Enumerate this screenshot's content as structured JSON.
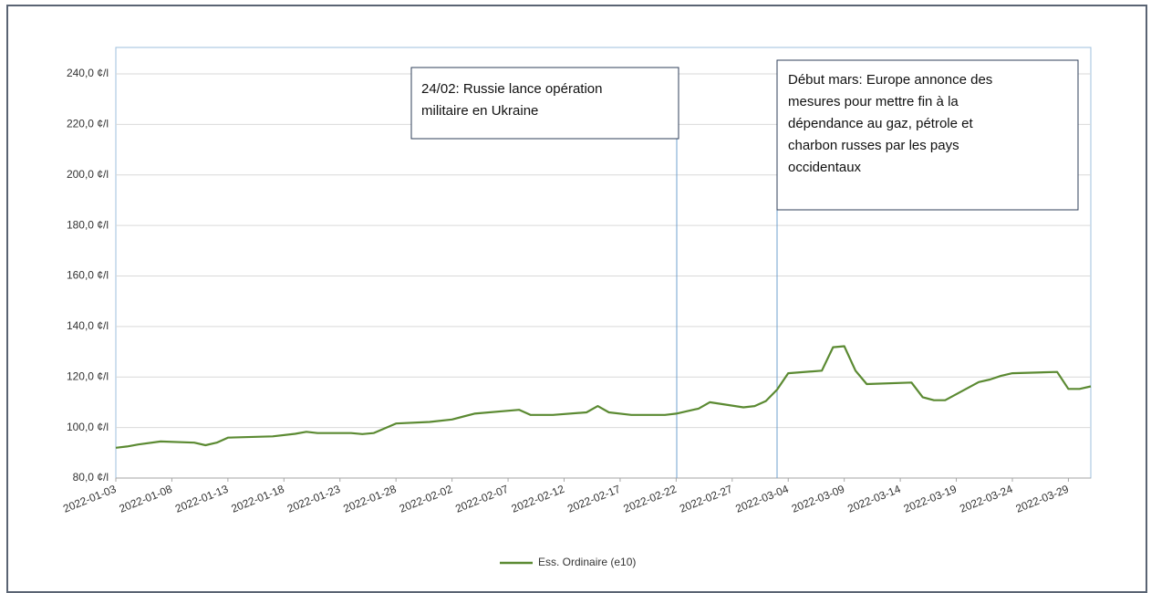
{
  "chart_data": {
    "type": "line",
    "x": [
      "2022-01-03",
      "2022-01-04",
      "2022-01-05",
      "2022-01-07",
      "2022-01-10",
      "2022-01-11",
      "2022-01-12",
      "2022-01-13",
      "2022-01-17",
      "2022-01-19",
      "2022-01-20",
      "2022-01-21",
      "2022-01-24",
      "2022-01-25",
      "2022-01-26",
      "2022-01-28",
      "2022-01-31",
      "2022-02-02",
      "2022-02-04",
      "2022-02-08",
      "2022-02-09",
      "2022-02-11",
      "2022-02-14",
      "2022-02-15",
      "2022-02-16",
      "2022-02-18",
      "2022-02-21",
      "2022-02-22",
      "2022-02-24",
      "2022-02-25",
      "2022-02-28",
      "2022-03-01",
      "2022-03-02",
      "2022-03-03",
      "2022-03-04",
      "2022-03-07",
      "2022-03-08",
      "2022-03-09",
      "2022-03-10",
      "2022-03-11",
      "2022-03-15",
      "2022-03-16",
      "2022-03-17",
      "2022-03-18",
      "2022-03-21",
      "2022-03-22",
      "2022-03-23",
      "2022-03-24",
      "2022-03-28",
      "2022-03-29",
      "2022-03-30",
      "2022-03-31"
    ],
    "series": [
      {
        "name": "Ess. Ordinaire (e10)",
        "color": "#5b8a32",
        "values": [
          92.0,
          92.5,
          93.3,
          94.5,
          94.0,
          93.0,
          94.0,
          96.0,
          96.5,
          97.5,
          98.3,
          97.8,
          97.8,
          97.4,
          97.8,
          101.6,
          102.2,
          103.2,
          105.5,
          107.0,
          105.0,
          105.0,
          106.0,
          108.5,
          106.0,
          105.0,
          105.0,
          105.5,
          107.5,
          110.0,
          108.0,
          108.5,
          110.5,
          115.0,
          121.5,
          122.5,
          131.8,
          132.2,
          122.5,
          117.2,
          117.8,
          112.0,
          110.8,
          110.8,
          118.0,
          119.0,
          120.5,
          121.5,
          122.0,
          115.3,
          115.3,
          116.3
        ]
      }
    ],
    "xlim": [
      "2022-01-03",
      "2022-03-31"
    ],
    "xticks": [
      "2022-01-03",
      "2022-01-08",
      "2022-01-13",
      "2022-01-18",
      "2022-01-23",
      "2022-01-28",
      "2022-02-02",
      "2022-02-07",
      "2022-02-12",
      "2022-02-17",
      "2022-02-22",
      "2022-02-27",
      "2022-03-04",
      "2022-03-09",
      "2022-03-14",
      "2022-03-19",
      "2022-03-24",
      "2022-03-29"
    ],
    "ylim": [
      80,
      240
    ],
    "yticks": [
      {
        "value": 80,
        "label": "80,0 ¢/l"
      },
      {
        "value": 100,
        "label": "100,0 ¢/l"
      },
      {
        "value": 120,
        "label": "120,0 ¢/l"
      },
      {
        "value": 140,
        "label": "140,0 ¢/l"
      },
      {
        "value": 160,
        "label": "160,0 ¢/l"
      },
      {
        "value": 180,
        "label": "180,0 ¢/l"
      },
      {
        "value": 200,
        "label": "200,0 ¢/l"
      },
      {
        "value": 220,
        "label": "220,0 ¢/l"
      },
      {
        "value": 240,
        "label": "240,0 ¢/l"
      }
    ],
    "grid": true,
    "legend": "bottom",
    "annotations": [
      {
        "lines": [
          "24/02: Russie lance opération",
          "militaire en Ukraine"
        ]
      },
      {
        "lines": [
          "Début mars: Europe annonce des",
          "mesures pour mettre fin à la",
          "dépendance au gaz, pétrole et",
          "charbon russes par les pays",
          "occidentaux"
        ]
      }
    ]
  }
}
